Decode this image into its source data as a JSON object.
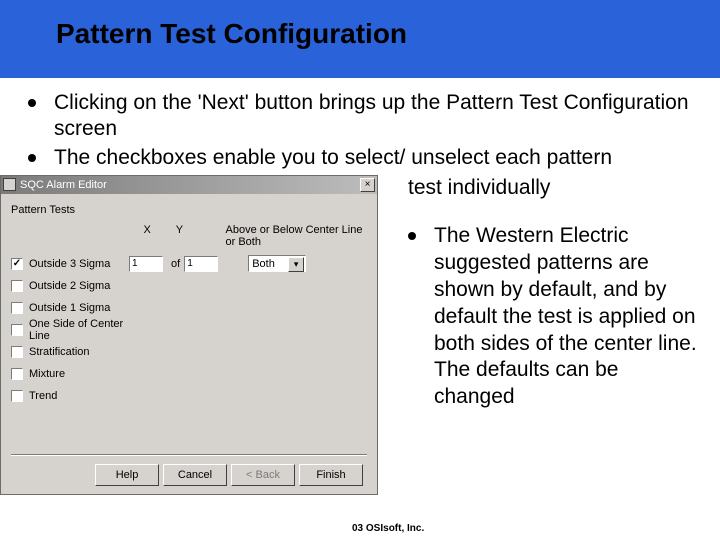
{
  "slide": {
    "title": "Pattern Test Configuration",
    "bullets": [
      "Clicking on the 'Next' button brings up the Pattern Test Configuration screen",
      "The checkboxes enable you to select/ unselect each pattern"
    ],
    "continuation": "test individually",
    "right_bullet": "The Western Electric suggested patterns are shown by default, and by default the test is applied on both sides of the center line. The defaults can be changed",
    "copyright": "03 OSIsoft, Inc."
  },
  "dialog": {
    "title": "SQC Alarm Editor",
    "group_label": "Pattern Tests",
    "col_x": "X",
    "col_y": "Y",
    "col_ab": "Above or Below Center Line or Both",
    "rows": [
      {
        "label": "Outside 3 Sigma",
        "checked": true,
        "x": "1",
        "y": "1",
        "sel": "Both"
      },
      {
        "label": "Outside 2 Sigma",
        "checked": false,
        "x": "",
        "y": "",
        "sel": ""
      },
      {
        "label": "Outside 1 Sigma",
        "checked": false,
        "x": "",
        "y": "",
        "sel": ""
      },
      {
        "label": "One Side of Center Line",
        "checked": false,
        "x": "",
        "y": "",
        "sel": ""
      },
      {
        "label": "Stratification",
        "checked": false,
        "x": "",
        "y": "",
        "sel": ""
      },
      {
        "label": "Mixture",
        "checked": false,
        "x": "",
        "y": "",
        "sel": ""
      },
      {
        "label": "Trend",
        "checked": false,
        "x": "",
        "y": "",
        "sel": ""
      }
    ],
    "of_label": "of",
    "buttons": {
      "help": "Help",
      "cancel": "Cancel",
      "back": "< Back",
      "finish": "Finish"
    }
  },
  "colors": {
    "title_bg": "#2962d9",
    "dialog_bg": "#d6d3ce"
  }
}
